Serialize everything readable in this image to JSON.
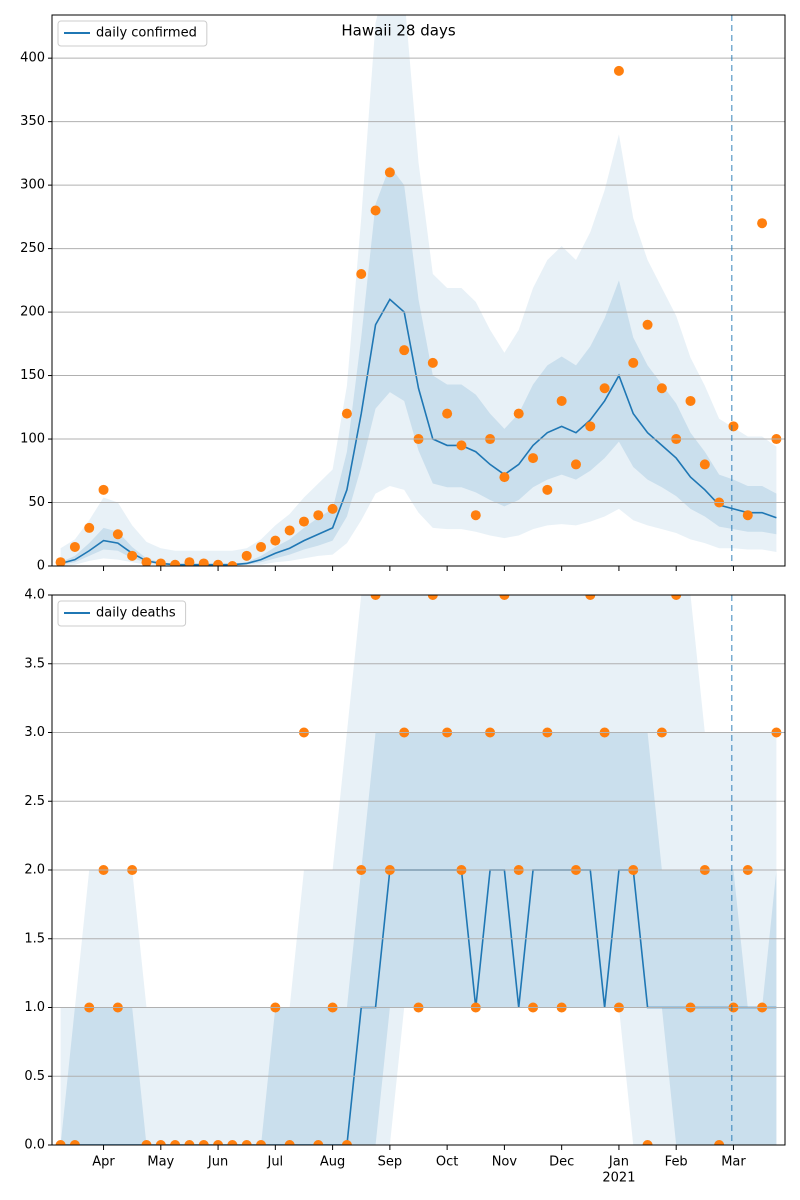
{
  "chart_data": [
    {
      "type": "line",
      "title": "Hawaii 28 days",
      "x": [
        0.25,
        0.5,
        0.75,
        1,
        1.25,
        1.5,
        1.75,
        2,
        2.25,
        2.5,
        2.75,
        3,
        3.25,
        3.5,
        3.75,
        4,
        4.25,
        4.5,
        4.75,
        5,
        5.25,
        5.5,
        5.75,
        6,
        6.25,
        6.5,
        6.75,
        7,
        7.25,
        7.5,
        7.75,
        8,
        8.25,
        8.5,
        8.75,
        9,
        9.25,
        9.5,
        9.75,
        10,
        10.25,
        10.5,
        10.75,
        11,
        11.25,
        11.5,
        11.75,
        12,
        12.25,
        12.5,
        12.75
      ],
      "xlim": [
        0.1,
        12.9
      ],
      "ylim": [
        0,
        434
      ],
      "yticks": [
        0,
        50,
        100,
        150,
        200,
        250,
        300,
        350,
        400
      ],
      "grid": true,
      "legend": "upper left",
      "vline": 11.97,
      "bands": [
        {
          "color": "#1f77b4",
          "opacity": 0.1,
          "lower": [
            0,
            1,
            4,
            6,
            5,
            3,
            1,
            1,
            0,
            0,
            0,
            0,
            0,
            1,
            1,
            3,
            4,
            6,
            8,
            9,
            18,
            36,
            57,
            63,
            60,
            42,
            30,
            29,
            29,
            27,
            24,
            22,
            24,
            29,
            32,
            33,
            32,
            35,
            39,
            45,
            36,
            32,
            29,
            26,
            21,
            18,
            14,
            14,
            13,
            13,
            11
          ],
          "upper": [
            14,
            21,
            36,
            54,
            50,
            32,
            19,
            14,
            12,
            12,
            12,
            12,
            12,
            14,
            21,
            32,
            41,
            54,
            65,
            76,
            142,
            274,
            428,
            472,
            450,
            318,
            230,
            219,
            219,
            208,
            186,
            168,
            186,
            219,
            241,
            252,
            241,
            263,
            296,
            340,
            274,
            241,
            219,
            197,
            164,
            142,
            116,
            109,
            102,
            102,
            94
          ]
        },
        {
          "color": "#1f77b4",
          "opacity": 0.15,
          "lower": [
            1,
            3,
            8,
            13,
            12,
            6,
            3,
            1,
            0,
            0,
            0,
            0,
            0,
            1,
            3,
            6,
            9,
            13,
            16,
            20,
            39,
            78,
            124,
            137,
            130,
            91,
            65,
            62,
            62,
            58,
            52,
            47,
            52,
            62,
            68,
            72,
            68,
            75,
            85,
            98,
            78,
            68,
            62,
            55,
            45,
            39,
            31,
            29,
            27,
            27,
            25
          ],
          "upper": [
            3,
            8,
            18,
            30,
            27,
            15,
            6,
            3,
            2,
            2,
            2,
            2,
            2,
            3,
            8,
            15,
            21,
            30,
            38,
            45,
            90,
            180,
            285,
            315,
            300,
            210,
            150,
            143,
            143,
            135,
            120,
            108,
            120,
            143,
            158,
            165,
            158,
            173,
            195,
            225,
            180,
            158,
            143,
            128,
            105,
            90,
            72,
            68,
            63,
            63,
            57
          ]
        }
      ],
      "series": [
        {
          "name": "daily confirmed",
          "color": "#1f77b4",
          "values": [
            2,
            5,
            12,
            20,
            18,
            10,
            4,
            2,
            1,
            1,
            1,
            1,
            1,
            2,
            5,
            10,
            14,
            20,
            25,
            30,
            60,
            120,
            190,
            210,
            200,
            140,
            100,
            95,
            95,
            90,
            80,
            72,
            80,
            95,
            105,
            110,
            105,
            115,
            130,
            150,
            120,
            105,
            95,
            85,
            70,
            60,
            48,
            45,
            42,
            42,
            38
          ]
        }
      ],
      "points": {
        "color": "#ff7f0e",
        "values": [
          3,
          15,
          30,
          60,
          25,
          8,
          3,
          2,
          1,
          3,
          2,
          1,
          0,
          8,
          15,
          20,
          28,
          35,
          40,
          45,
          120,
          230,
          280,
          310,
          170,
          100,
          160,
          120,
          95,
          40,
          100,
          70,
          120,
          85,
          60,
          130,
          80,
          110,
          140,
          390,
          160,
          190,
          140,
          100,
          130,
          80,
          50,
          110,
          40,
          270,
          100
        ]
      }
    },
    {
      "type": "line",
      "x": [
        0.25,
        0.5,
        0.75,
        1,
        1.25,
        1.5,
        1.75,
        2,
        2.25,
        2.5,
        2.75,
        3,
        3.25,
        3.5,
        3.75,
        4,
        4.25,
        4.5,
        4.75,
        5,
        5.25,
        5.5,
        5.75,
        6,
        6.25,
        6.5,
        6.75,
        7,
        7.25,
        7.5,
        7.75,
        8,
        8.25,
        8.5,
        8.75,
        9,
        9.25,
        9.5,
        9.75,
        10,
        10.25,
        10.5,
        10.75,
        11,
        11.25,
        11.5,
        11.75,
        12,
        12.25,
        12.5,
        12.75
      ],
      "xlim": [
        0.1,
        12.9
      ],
      "ylim": [
        0,
        4
      ],
      "yticks": [
        {
          "value": 0,
          "label": "0.0"
        },
        {
          "value": 0.5,
          "label": "0.5"
        },
        {
          "value": 1,
          "label": "1.0"
        },
        {
          "value": 1.5,
          "label": "1.5"
        },
        {
          "value": 2,
          "label": "2.0"
        },
        {
          "value": 2.5,
          "label": "2.5"
        },
        {
          "value": 3,
          "label": "3.0"
        },
        {
          "value": 3.5,
          "label": "3.5"
        },
        {
          "value": 4,
          "label": "4.0"
        }
      ],
      "xticks": [
        {
          "value": 1,
          "label": "Apr"
        },
        {
          "value": 2,
          "label": "May"
        },
        {
          "value": 3,
          "label": "Jun"
        },
        {
          "value": 4,
          "label": "Jul"
        },
        {
          "value": 5,
          "label": "Aug"
        },
        {
          "value": 6,
          "label": "Sep"
        },
        {
          "value": 7,
          "label": "Oct"
        },
        {
          "value": 8,
          "label": "Nov"
        },
        {
          "value": 9,
          "label": "Dec"
        },
        {
          "value": 10,
          "label": "Jan"
        },
        {
          "value": 11,
          "label": "Feb"
        },
        {
          "value": 12,
          "label": "Mar"
        }
      ],
      "x_secondary_labels": [
        {
          "value": 10,
          "label": "2021"
        }
      ],
      "grid": true,
      "legend": "upper left",
      "vline": 11.97,
      "bands": [
        {
          "color": "#1f77b4",
          "opacity": 0.1,
          "lower": [
            0,
            0,
            0,
            0,
            0,
            0,
            0,
            0,
            0,
            0,
            0,
            0,
            0,
            0,
            0,
            0,
            0,
            0,
            0,
            0,
            0,
            0,
            0,
            0,
            1,
            1,
            1,
            1,
            1,
            1,
            1,
            1,
            1,
            1,
            1,
            1,
            1,
            1,
            1,
            1,
            0,
            0,
            0,
            0,
            0,
            0,
            0,
            0,
            0,
            0,
            0
          ],
          "upper": [
            1,
            1,
            2,
            2,
            2,
            2,
            1,
            1,
            1,
            1,
            1,
            1,
            1,
            1,
            1,
            1,
            1,
            2,
            2,
            2,
            3,
            4,
            4,
            4,
            4,
            4,
            4,
            4,
            4,
            4,
            4,
            4,
            4,
            4,
            4,
            4,
            4,
            4,
            4,
            4,
            4,
            4,
            4,
            4,
            4,
            3,
            3,
            3,
            3,
            3,
            3
          ]
        },
        {
          "color": "#1f77b4",
          "opacity": 0.15,
          "lower": [
            0,
            0,
            0,
            0,
            0,
            0,
            0,
            0,
            0,
            0,
            0,
            0,
            0,
            0,
            0,
            0,
            0,
            0,
            0,
            0,
            0,
            0,
            0,
            1,
            1,
            1,
            1,
            1,
            1,
            1,
            1,
            1,
            1,
            1,
            1,
            1,
            1,
            1,
            1,
            1,
            1,
            1,
            1,
            0,
            0,
            0,
            0,
            0,
            0,
            0,
            0
          ],
          "upper": [
            0,
            1,
            1,
            1,
            1,
            1,
            0,
            0,
            0,
            0,
            0,
            0,
            0,
            0,
            0,
            1,
            1,
            1,
            1,
            1,
            1,
            2,
            3,
            3,
            3,
            3,
            3,
            3,
            3,
            3,
            3,
            3,
            3,
            3,
            3,
            3,
            3,
            3,
            3,
            3,
            3,
            3,
            2,
            2,
            2,
            2,
            2,
            2,
            1,
            1,
            2
          ]
        }
      ],
      "series": [
        {
          "name": "daily deaths",
          "color": "#1f77b4",
          "values": [
            0,
            0,
            0,
            0,
            0,
            0,
            0,
            0,
            0,
            0,
            0,
            0,
            0,
            0,
            0,
            0,
            0,
            0,
            0,
            0,
            0,
            1,
            1,
            2,
            2,
            2,
            2,
            2,
            2,
            1,
            2,
            2,
            1,
            2,
            2,
            2,
            2,
            2,
            1,
            2,
            2,
            1,
            1,
            1,
            1,
            1,
            1,
            1,
            1,
            1,
            1
          ]
        }
      ],
      "points": {
        "color": "#ff7f0e",
        "values": [
          0,
          0,
          1,
          2,
          1,
          2,
          0,
          0,
          0,
          0,
          0,
          0,
          0,
          0,
          0,
          1,
          0,
          3,
          0,
          1,
          0,
          2,
          4,
          2,
          3,
          1,
          4,
          3,
          2,
          1,
          3,
          4,
          2,
          1,
          3,
          1,
          2,
          4,
          3,
          1,
          2,
          0,
          3,
          4,
          1,
          2,
          0,
          1,
          2,
          1,
          3
        ]
      }
    }
  ]
}
